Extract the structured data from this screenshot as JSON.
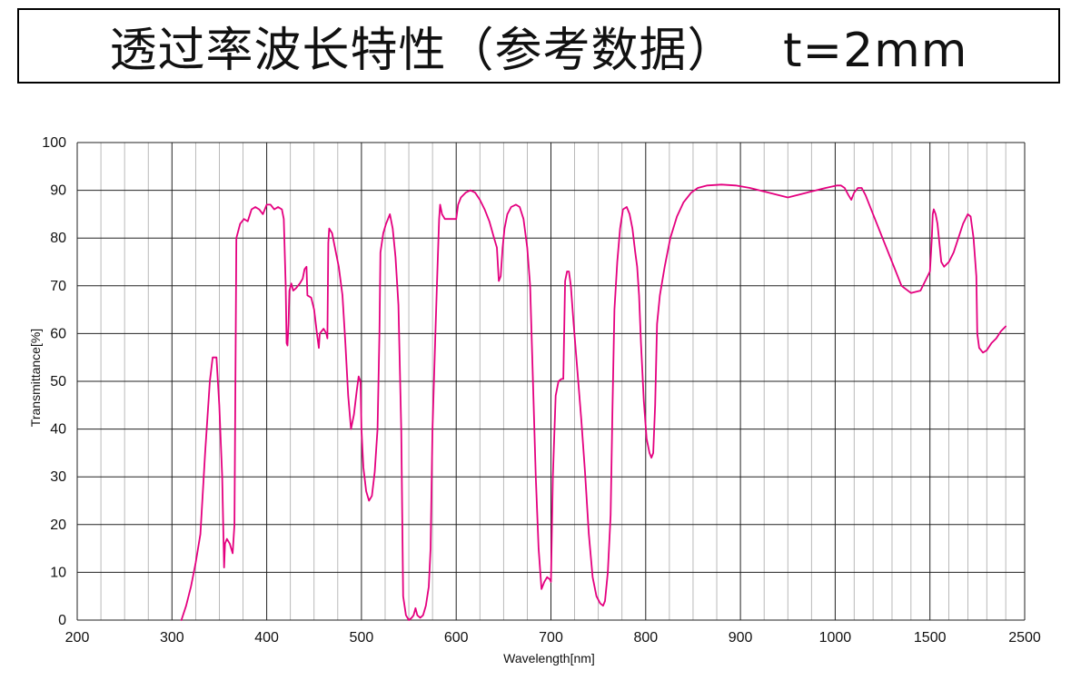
{
  "title": "透过率波长特性（参考数据）   t=2mm",
  "chart_data": {
    "type": "line",
    "xlabel": "Wavelength[nm]",
    "ylabel": "Transmittance[%]",
    "x_tick_labels": [
      "200",
      "300",
      "400",
      "500",
      "600",
      "700",
      "800",
      "900",
      "1000",
      "1500",
      "2500"
    ],
    "y_tick_labels": [
      "0",
      "10",
      "20",
      "30",
      "40",
      "50",
      "60",
      "70",
      "80",
      "90",
      "100"
    ],
    "ylim": [
      0,
      100
    ],
    "grid": true,
    "line_color": "#e4007f",
    "series": [
      {
        "points": [
          [
            310,
            0
          ],
          [
            315,
            3
          ],
          [
            320,
            7
          ],
          [
            325,
            12
          ],
          [
            330,
            18
          ],
          [
            335,
            35
          ],
          [
            340,
            50
          ],
          [
            343,
            55
          ],
          [
            347,
            55
          ],
          [
            350,
            45
          ],
          [
            353,
            30
          ],
          [
            355,
            11
          ],
          [
            356,
            16
          ],
          [
            358,
            17
          ],
          [
            361,
            16
          ],
          [
            364,
            14
          ],
          [
            366,
            20
          ],
          [
            368,
            80
          ],
          [
            372,
            83
          ],
          [
            376,
            84
          ],
          [
            380,
            83.5
          ],
          [
            384,
            86
          ],
          [
            388,
            86.5
          ],
          [
            392,
            86
          ],
          [
            396,
            85
          ],
          [
            400,
            87
          ],
          [
            404,
            87
          ],
          [
            408,
            86
          ],
          [
            412,
            86.5
          ],
          [
            416,
            86
          ],
          [
            418,
            84
          ],
          [
            420,
            70
          ],
          [
            421,
            58
          ],
          [
            422,
            57.5
          ],
          [
            423,
            62
          ],
          [
            424,
            69
          ],
          [
            426,
            70.5
          ],
          [
            428,
            69
          ],
          [
            431,
            69.5
          ],
          [
            435,
            70.5
          ],
          [
            438,
            71.5
          ],
          [
            440,
            73.5
          ],
          [
            442,
            74
          ],
          [
            443,
            68
          ],
          [
            447,
            67.5
          ],
          [
            450,
            65
          ],
          [
            453,
            60
          ],
          [
            455,
            57
          ],
          [
            456,
            60
          ],
          [
            460,
            61
          ],
          [
            463,
            60
          ],
          [
            464,
            59
          ],
          [
            465,
            79
          ],
          [
            466,
            82
          ],
          [
            469,
            81
          ],
          [
            472,
            78
          ],
          [
            476,
            74
          ],
          [
            480,
            68
          ],
          [
            483,
            58
          ],
          [
            486,
            47
          ],
          [
            489,
            40
          ],
          [
            492,
            43
          ],
          [
            495,
            48
          ],
          [
            497,
            51
          ],
          [
            499,
            50
          ],
          [
            500,
            40
          ],
          [
            502,
            32
          ],
          [
            505,
            27
          ],
          [
            508,
            25
          ],
          [
            511,
            26
          ],
          [
            514,
            31
          ],
          [
            517,
            40
          ],
          [
            519,
            60
          ],
          [
            520,
            77
          ],
          [
            523,
            81
          ],
          [
            526,
            83
          ],
          [
            530,
            85
          ],
          [
            533,
            82
          ],
          [
            536,
            76
          ],
          [
            539,
            66
          ],
          [
            542,
            40
          ],
          [
            544,
            5
          ],
          [
            547,
            1
          ],
          [
            550,
            0
          ],
          [
            553,
            0.5
          ],
          [
            555,
            1
          ],
          [
            557,
            2.5
          ],
          [
            559,
            1
          ],
          [
            562,
            0.5
          ],
          [
            565,
            1
          ],
          [
            568,
            3
          ],
          [
            571,
            7
          ],
          [
            573,
            15
          ],
          [
            575,
            40
          ],
          [
            578,
            60
          ],
          [
            580,
            72
          ],
          [
            582,
            84
          ],
          [
            583,
            87
          ],
          [
            585,
            85
          ],
          [
            588,
            84
          ],
          [
            592,
            84
          ],
          [
            596,
            84
          ],
          [
            600,
            84
          ],
          [
            602,
            87
          ],
          [
            605,
            88.5
          ],
          [
            610,
            89.5
          ],
          [
            615,
            90
          ],
          [
            620,
            89.5
          ],
          [
            625,
            88
          ],
          [
            630,
            86
          ],
          [
            635,
            83.5
          ],
          [
            640,
            80
          ],
          [
            643,
            78
          ],
          [
            645,
            71
          ],
          [
            647,
            72
          ],
          [
            649,
            78
          ],
          [
            651,
            82
          ],
          [
            654,
            85
          ],
          [
            658,
            86.5
          ],
          [
            663,
            87
          ],
          [
            667,
            86.5
          ],
          [
            671,
            84
          ],
          [
            675,
            78
          ],
          [
            678,
            70
          ],
          [
            681,
            50
          ],
          [
            684,
            30
          ],
          [
            687,
            15
          ],
          [
            690,
            6.5
          ],
          [
            693,
            8
          ],
          [
            696,
            9
          ],
          [
            699,
            8.5
          ],
          [
            700,
            8
          ],
          [
            702,
            30
          ],
          [
            705,
            47
          ],
          [
            708,
            50
          ],
          [
            711,
            50.5
          ],
          [
            713,
            50.5
          ],
          [
            715,
            71
          ],
          [
            717,
            73
          ],
          [
            719,
            73
          ],
          [
            721,
            70
          ],
          [
            724,
            62
          ],
          [
            728,
            52
          ],
          [
            732,
            42
          ],
          [
            736,
            31
          ],
          [
            740,
            18
          ],
          [
            744,
            9
          ],
          [
            748,
            5
          ],
          [
            752,
            3.5
          ],
          [
            755,
            3
          ],
          [
            757,
            4
          ],
          [
            760,
            10
          ],
          [
            763,
            22
          ],
          [
            765,
            45
          ],
          [
            767,
            65
          ],
          [
            770,
            75
          ],
          [
            773,
            82
          ],
          [
            776,
            86
          ],
          [
            780,
            86.5
          ],
          [
            783,
            85
          ],
          [
            786,
            82
          ],
          [
            789,
            77
          ],
          [
            791,
            74
          ],
          [
            793,
            68
          ],
          [
            795,
            58
          ],
          [
            798,
            46
          ],
          [
            801,
            38
          ],
          [
            804,
            35
          ],
          [
            806,
            34
          ],
          [
            808,
            35
          ],
          [
            810,
            45
          ],
          [
            812,
            62
          ],
          [
            815,
            68
          ],
          [
            820,
            74
          ],
          [
            826,
            80
          ],
          [
            833,
            84.5
          ],
          [
            840,
            87.5
          ],
          [
            848,
            89.5
          ],
          [
            855,
            90.5
          ],
          [
            865,
            91
          ],
          [
            880,
            91.2
          ],
          [
            895,
            91
          ],
          [
            910,
            90.5
          ],
          [
            930,
            89.5
          ],
          [
            950,
            88.5
          ],
          [
            970,
            89.5
          ],
          [
            990,
            90.5
          ],
          [
            1010,
            91
          ],
          [
            1030,
            91
          ],
          [
            1050,
            90.5
          ],
          [
            1070,
            89
          ],
          [
            1085,
            88
          ],
          [
            1100,
            89.5
          ],
          [
            1120,
            90.5
          ],
          [
            1140,
            90.5
          ],
          [
            1160,
            89
          ],
          [
            1200,
            85
          ],
          [
            1250,
            80
          ],
          [
            1300,
            75
          ],
          [
            1350,
            70
          ],
          [
            1400,
            68.5
          ],
          [
            1450,
            69
          ],
          [
            1500,
            73
          ],
          [
            1520,
            80
          ],
          [
            1530,
            85
          ],
          [
            1540,
            86
          ],
          [
            1560,
            85
          ],
          [
            1580,
            83
          ],
          [
            1600,
            79
          ],
          [
            1620,
            75
          ],
          [
            1650,
            74
          ],
          [
            1700,
            75
          ],
          [
            1750,
            77
          ],
          [
            1800,
            80
          ],
          [
            1850,
            83
          ],
          [
            1900,
            85
          ],
          [
            1930,
            84.5
          ],
          [
            1960,
            80
          ],
          [
            1990,
            72
          ],
          [
            2000,
            60
          ],
          [
            2020,
            57
          ],
          [
            2060,
            56
          ],
          [
            2100,
            56.5
          ],
          [
            2150,
            58
          ],
          [
            2200,
            59
          ],
          [
            2250,
            60.5
          ],
          [
            2300,
            61.5
          ]
        ]
      }
    ]
  }
}
